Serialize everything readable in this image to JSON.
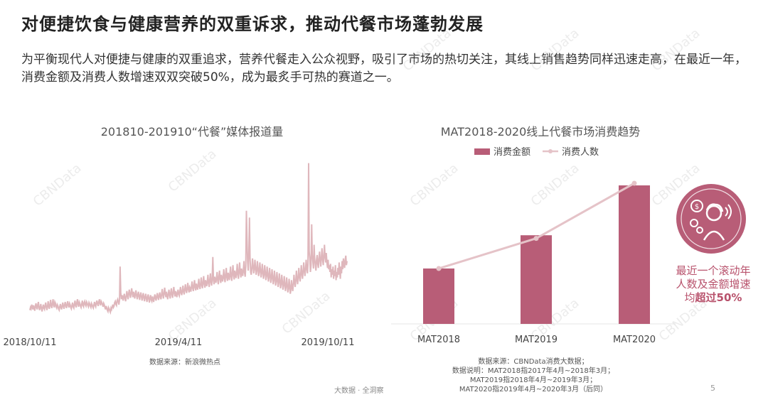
{
  "page": {
    "title": "对便捷饮食与健康营养的双重诉求，推动代餐市场蓬勃发展",
    "subtitle": "为平衡现代人对便捷与健康的双重追求，营养代餐走入公众视野，吸引了市场的热切关注，其线上销售趋势同样迅速走高，在最近一年，消费金额及消费人数增速双双突破50%，成为最炙手可热的赛道之一。",
    "footer_label": "大数据 · 全洞察",
    "page_number": "5",
    "watermark": "CBNData"
  },
  "left_chart": {
    "title": "201810-201910“代餐”媒体报道量",
    "source": "数据来源：新浪微热点",
    "x_ticks": [
      "2018/10/11",
      "2019/4/11",
      "2019/10/11"
    ]
  },
  "right_chart": {
    "title": "MAT2018-2020线上代餐市场消费趋势",
    "legend_bar": "消费金额",
    "legend_line": "消费人数",
    "source_lines": [
      "数据来源：CBNData消费大数据；",
      "数据说明：MAT2018指2017年4月~2018年3月；",
      "MAT2019指2018年4月~2019年3月；",
      "MAT2020指2019年4月~2020年3月（后同）"
    ],
    "callout_line1": "最近一个滚动年",
    "callout_line2": "人数及金额增速",
    "callout_prefix": "均",
    "callout_emph": "超过50%",
    "icon": "consumer-money-icon"
  },
  "colors": {
    "bar": "#b85d77",
    "line": "#e5c3c8",
    "media_line": "#dfb7bc",
    "accent": "#b8526c"
  },
  "chart_data": [
    {
      "type": "line",
      "title": "201810-201910“代餐”媒体报道量",
      "xlabel": "",
      "ylabel": "",
      "x_tick_labels": [
        "2018/10/11",
        "2019/4/11",
        "2019/10/11"
      ],
      "grid": false,
      "values": [
        14,
        18,
        16,
        22,
        19,
        15,
        21,
        17,
        13,
        20,
        24,
        18,
        15,
        22,
        26,
        17,
        14,
        19,
        23,
        16,
        12,
        18,
        22,
        17,
        15,
        21,
        25,
        18,
        14,
        20,
        27,
        19,
        16,
        23,
        29,
        20,
        17,
        24,
        30,
        21,
        18,
        26,
        24,
        19,
        17,
        22,
        20,
        16,
        14,
        19,
        23,
        18,
        15,
        21,
        25,
        19,
        16,
        22,
        26,
        20,
        17,
        23,
        27,
        21,
        18,
        24,
        22,
        18,
        16,
        21,
        25,
        19,
        17,
        23,
        28,
        21,
        18,
        25,
        30,
        22,
        19,
        26,
        24,
        20,
        18,
        23,
        28,
        21,
        19,
        25,
        27,
        22,
        20,
        26,
        24,
        21,
        19,
        25,
        23,
        20,
        18,
        24,
        22,
        19,
        17,
        22,
        26,
        21,
        19,
        25,
        28,
        23,
        20,
        26,
        30,
        24,
        21,
        27,
        25,
        22,
        19,
        24,
        22,
        18,
        15,
        20,
        17,
        14,
        12,
        18,
        16,
        13,
        11,
        17,
        15,
        19,
        22,
        18,
        20,
        25,
        27,
        23,
        21,
        28,
        30,
        26,
        22,
        29,
        78,
        40,
        30,
        36,
        33,
        28,
        35,
        38,
        31,
        27,
        34,
        42,
        36,
        30,
        38,
        44,
        37,
        32,
        40,
        46,
        38,
        33,
        41,
        36,
        31,
        39,
        43,
        35,
        30,
        37,
        41,
        34,
        29,
        36,
        40,
        33,
        28,
        35,
        39,
        32,
        27,
        34,
        38,
        31,
        26,
        33,
        37,
        30,
        25,
        32,
        36,
        29,
        27,
        34,
        30,
        26,
        33,
        37,
        31,
        28,
        35,
        39,
        32,
        29,
        36,
        40,
        33,
        30,
        38,
        45,
        36,
        31,
        39,
        47,
        38,
        33,
        41,
        35,
        30,
        38,
        44,
        36,
        31,
        40,
        46,
        37,
        32,
        41,
        48,
        39,
        34,
        42,
        38,
        33,
        40,
        44,
        37,
        35,
        42,
        48,
        39,
        36,
        43,
        50,
        41,
        37,
        45,
        52,
        43,
        39,
        47,
        54,
        44,
        40,
        48,
        46,
        41,
        50,
        56,
        46,
        42,
        51,
        58,
        47,
        43,
        53,
        49,
        44,
        52,
        60,
        48,
        45,
        54,
        62,
        50,
        46,
        56,
        64,
        52,
        47,
        58,
        55,
        49,
        57,
        66,
        53,
        48,
        59,
        68,
        55,
        50,
        61,
        92,
        58,
        52,
        63,
        60,
        54,
        62,
        70,
        57,
        52,
        64,
        72,
        59,
        54,
        66,
        62,
        56,
        64,
        74,
        60,
        55,
        67,
        76,
        62,
        57,
        69,
        65,
        58,
        67,
        78,
        63,
        57,
        70,
        80,
        65,
        59,
        72,
        68,
        61,
        70,
        82,
        66,
        60,
        73,
        84,
        68,
        62,
        75,
        71,
        64,
        73,
        86,
        69,
        63,
        78,
        160,
        120,
        85,
        72,
        95,
        150,
        92,
        70,
        66,
        75,
        90,
        80,
        68,
        74,
        88,
        78,
        66,
        72,
        86,
        76,
        64,
        70,
        84,
        74,
        62,
        68,
        82,
        72,
        60,
        66,
        80,
        70,
        58,
        64,
        78,
        68,
        56,
        62,
        76,
        66,
        54,
        60,
        74,
        64,
        52,
        58,
        72,
        62,
        50,
        56,
        70,
        60,
        48,
        54,
        68,
        58,
        46,
        52,
        66,
        56,
        44,
        50,
        64,
        54,
        42,
        48,
        62,
        52,
        40,
        46,
        60,
        50,
        38,
        44,
        58,
        48,
        42,
        52,
        66,
        56,
        48,
        58,
        72,
        60,
        52,
        62,
        76,
        64,
        56,
        66,
        80,
        68,
        60,
        70,
        84,
        72,
        64,
        74,
        88,
        76,
        68,
        82,
        230,
        100,
        90,
        70,
        80,
        140,
        95,
        85,
        75,
        110,
        90,
        80,
        72,
        88,
        95,
        82,
        76,
        90,
        100,
        86,
        78,
        92,
        105,
        88,
        80,
        94,
        110,
        92,
        84,
        98,
        84,
        76,
        88,
        74,
        80,
        70,
        82,
        62,
        74,
        66,
        78,
        60,
        72,
        64,
        80,
        58,
        70,
        62,
        76,
        66,
        84,
        72,
        60,
        78,
        68,
        86,
        74,
        90,
        82,
        76,
        88,
        94,
        80,
        86
      ]
    },
    {
      "type": "bar",
      "title": "MAT2018-2020线上代餐市场消费趋势",
      "categories": [
        "MAT2018",
        "MAT2019",
        "MAT2020"
      ],
      "series": [
        {
          "name": "消费金额",
          "type": "bar",
          "values": [
            1.0,
            1.6,
            2.5
          ]
        },
        {
          "name": "消费人数",
          "type": "line",
          "values": [
            1.0,
            1.6,
            2.7
          ]
        }
      ],
      "xlabel": "",
      "ylabel": "",
      "grid": false,
      "legend": "top"
    }
  ]
}
